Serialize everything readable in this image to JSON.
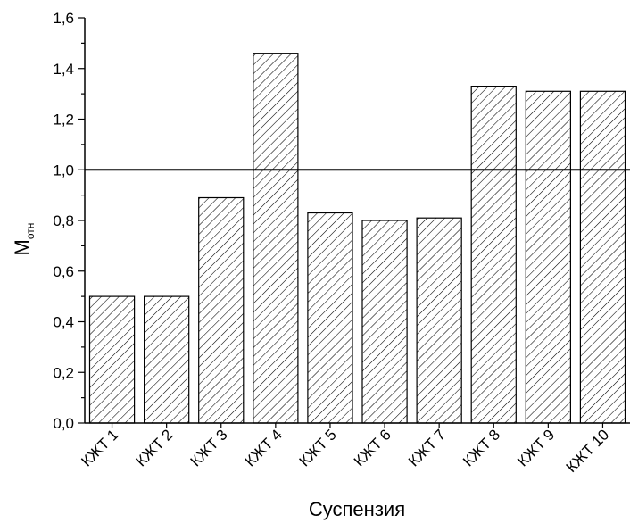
{
  "chart_data": {
    "type": "bar",
    "categories": [
      "КЖТ 1",
      "КЖТ 2",
      "КЖТ 3",
      "КЖТ 4",
      "КЖТ 5",
      "КЖТ 6",
      "КЖТ 7",
      "КЖТ 8",
      "КЖТ 9",
      "КЖТ 10"
    ],
    "values": [
      0.5,
      0.5,
      0.89,
      1.46,
      0.83,
      0.8,
      0.81,
      1.33,
      1.31,
      1.31
    ],
    "title": "",
    "xlabel": "Суспензия",
    "ylabel": "M",
    "ylabel_sub": "отн",
    "ylim": [
      0,
      1.6
    ],
    "yticks": [
      "0,0",
      "0,2",
      "0,4",
      "0,6",
      "0,8",
      "1,0",
      "1,2",
      "1,4",
      "1,6"
    ],
    "reference_line": 1.0,
    "bar_fill": "hatched",
    "colors": {
      "bar_stroke": "#000000",
      "hatch": "#000000",
      "axis": "#000000"
    },
    "grid": false
  }
}
